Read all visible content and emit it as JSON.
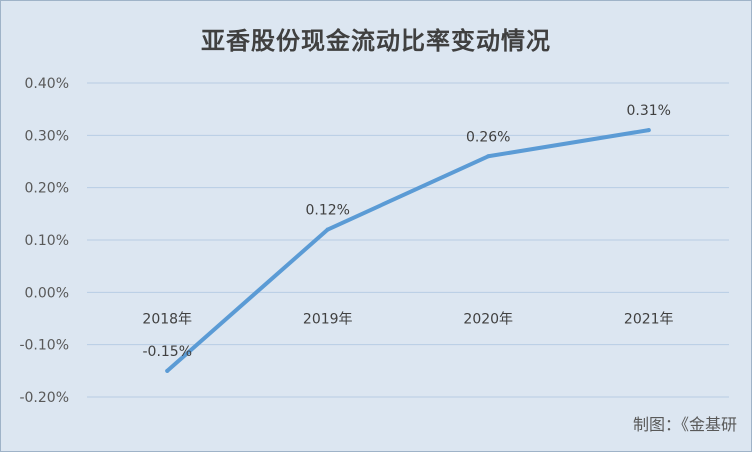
{
  "chart_data": {
    "type": "line",
    "title": "亚香股份现金流动比率变动情况",
    "categories": [
      "2018年",
      "2019年",
      "2020年",
      "2021年"
    ],
    "series": [
      {
        "values": [
          -0.15,
          0.12,
          0.26,
          0.31
        ],
        "data_labels": [
          "-0.15%",
          "0.12%",
          "0.26%",
          "0.31%"
        ]
      }
    ],
    "ylim": [
      -0.2,
      0.4
    ],
    "y_ticks": [
      0.4,
      0.3,
      0.2,
      0.1,
      0.0,
      -0.1,
      -0.2
    ],
    "y_tick_labels": [
      "0.40%",
      "0.30%",
      "0.20%",
      "0.10%",
      "0.00%",
      "-0.10%",
      "-0.20%"
    ],
    "xlabel": "",
    "ylabel": "",
    "grid": true,
    "line_color": "#5b9bd5",
    "grid_color": "#b8cce4",
    "credit": "制图：《金基研"
  }
}
